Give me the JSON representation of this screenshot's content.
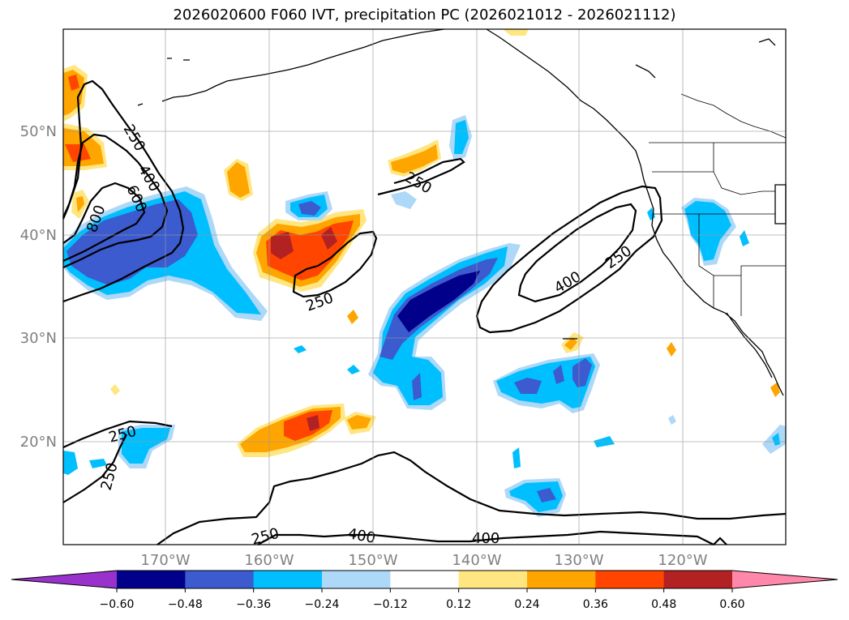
{
  "title": "2026020600 F060 IVT, precipitation PC (2026021012 - 2026021112)",
  "lat_labels": [
    "50°N",
    "40°N",
    "30°N",
    "20°N"
  ],
  "lon_labels": [
    "170°W",
    "160°W",
    "150°W",
    "140°W",
    "130°W",
    "120°W"
  ],
  "contour_labels": {
    "nw_250": "250",
    "nw_400": "400",
    "nw_600": "600",
    "nw_800": "800",
    "npac_250": "250",
    "mid_250": "250",
    "ne_400": "400",
    "ne_250": "250",
    "sw_250a": "250",
    "sw_250b": "250",
    "s_250": "250",
    "s_400a": "400",
    "s_400b": "400"
  },
  "colorbar": {
    "ticks": [
      "−0.60",
      "−0.48",
      "−0.36",
      "−0.24",
      "−0.12",
      "0.12",
      "0.24",
      "0.36",
      "0.48",
      "0.60"
    ],
    "colors": [
      "#9932cc",
      "#00008b",
      "#3b5bcf",
      "#00bfff",
      "#add8f7",
      "#ffffff",
      "#ffe680",
      "#ffa500",
      "#ff4500",
      "#b22222",
      "#ff88aa"
    ]
  },
  "colors": {
    "dark_blue": "#00008b",
    "blue": "#3b5bcf",
    "cyan": "#00bfff",
    "light_blue": "#add8f7",
    "yellow": "#ffe680",
    "orange": "#ffa500",
    "red_orange": "#ff4500",
    "dark_red": "#b22222"
  }
}
